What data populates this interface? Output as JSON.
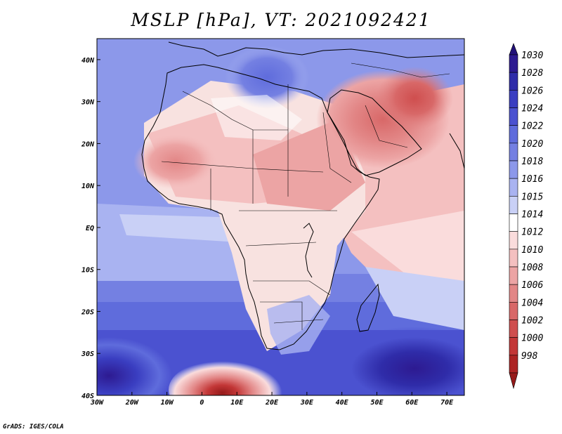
{
  "map": {
    "title": "MSLP [hPa], VT: 2021092421",
    "credit": "GrADS: IGES/COLA",
    "variable": "Mean Sea Level Pressure",
    "units": "hPa",
    "valid_time": "2021092421",
    "region": "Africa and Middle East",
    "lon_range": [
      -30,
      75
    ],
    "lat_range": [
      -40,
      45
    ],
    "lat_ticks": [
      {
        "value": 40,
        "label": "40N"
      },
      {
        "value": 30,
        "label": "30N"
      },
      {
        "value": 20,
        "label": "20N"
      },
      {
        "value": 10,
        "label": "10N"
      },
      {
        "value": 0,
        "label": "EQ"
      },
      {
        "value": -10,
        "label": "10S"
      },
      {
        "value": -20,
        "label": "20S"
      },
      {
        "value": -30,
        "label": "30S"
      },
      {
        "value": -40,
        "label": "40S"
      }
    ],
    "lon_ticks": [
      {
        "value": -30,
        "label": "30W"
      },
      {
        "value": -20,
        "label": "20W"
      },
      {
        "value": -10,
        "label": "10W"
      },
      {
        "value": 0,
        "label": "0"
      },
      {
        "value": 10,
        "label": "10E"
      },
      {
        "value": 20,
        "label": "20E"
      },
      {
        "value": 30,
        "label": "30E"
      },
      {
        "value": 40,
        "label": "40E"
      },
      {
        "value": 50,
        "label": "50E"
      },
      {
        "value": 60,
        "label": "60E"
      },
      {
        "value": 70,
        "label": "70E"
      }
    ]
  },
  "colorbar": {
    "levels": [
      {
        "label": "1030",
        "color": "#2d1a91"
      },
      {
        "label": "1028",
        "color": "#2f2ca9"
      },
      {
        "label": "1026",
        "color": "#3a3ec1"
      },
      {
        "label": "1024",
        "color": "#4b52d0"
      },
      {
        "label": "1022",
        "color": "#5f6cdc"
      },
      {
        "label": "1020",
        "color": "#7480e2"
      },
      {
        "label": "1018",
        "color": "#8c98ea"
      },
      {
        "label": "1016",
        "color": "#a9b3f1"
      },
      {
        "label": "1015",
        "color": "#c9d0f6"
      },
      {
        "label": "1014",
        "color": "#ffffff"
      },
      {
        "label": "1012",
        "color": "#fadcdc"
      },
      {
        "label": "1010",
        "color": "#f4c0c0"
      },
      {
        "label": "1008",
        "color": "#eca4a4"
      },
      {
        "label": "1006",
        "color": "#e28686"
      },
      {
        "label": "1004",
        "color": "#d86868"
      },
      {
        "label": "1002",
        "color": "#cf4e4e"
      },
      {
        "label": "1000",
        "color": "#c33737"
      },
      {
        "label": "998",
        "color": "#ad2424"
      }
    ],
    "top_arrow_color": "#221179",
    "bottom_arrow_color": "#961a1a"
  },
  "colors": {
    "land_background": "#f8e2e0",
    "ocean_background": "#8e97e6",
    "frame": "#000000"
  }
}
